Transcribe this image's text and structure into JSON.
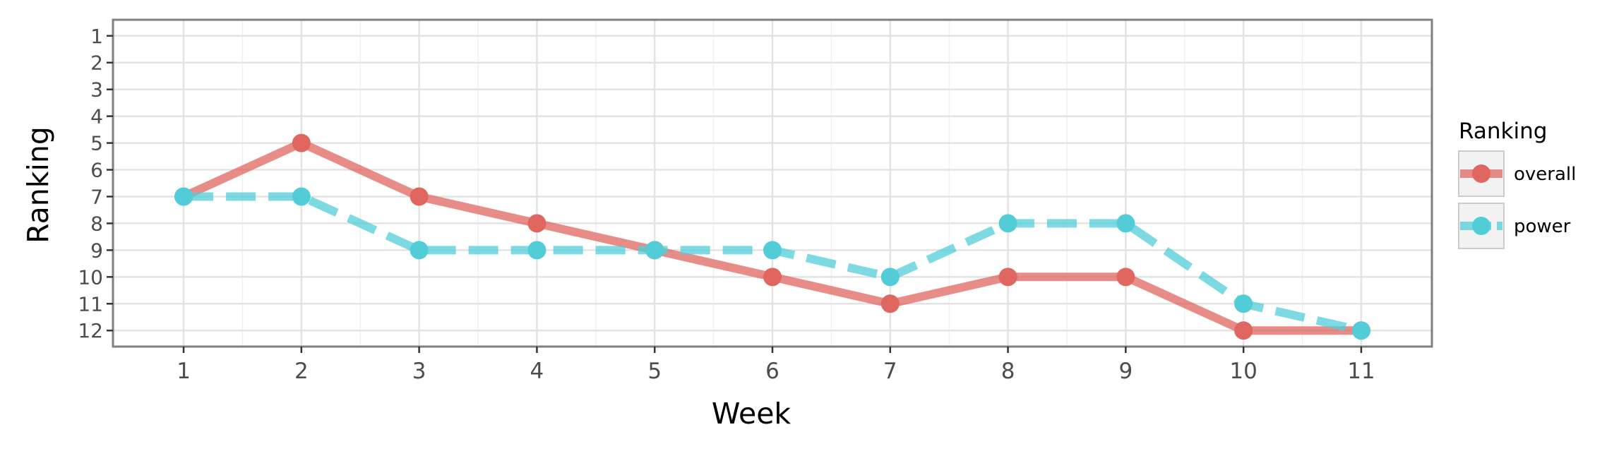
{
  "chart_data": {
    "type": "line",
    "xlabel": "Week",
    "ylabel": "Ranking",
    "x": [
      1,
      2,
      3,
      4,
      5,
      6,
      7,
      8,
      9,
      10,
      11
    ],
    "xlim": [
      0.4,
      11.6
    ],
    "ylim": [
      12.6,
      0.4
    ],
    "y_reversed": true,
    "yticks": [
      "1",
      "2",
      "3",
      "4",
      "5",
      "6",
      "7",
      "8",
      "9",
      "10",
      "11",
      "12"
    ],
    "xticks": [
      "1",
      "2",
      "3",
      "4",
      "5",
      "6",
      "7",
      "8",
      "9",
      "10",
      "11"
    ],
    "grid": true,
    "legend": {
      "title": "Ranking",
      "position": "right"
    },
    "series": [
      {
        "name": "overall",
        "color": "#E06660",
        "line_style": "solid",
        "values": [
          7,
          5,
          7,
          8,
          9,
          10,
          11,
          10,
          10,
          12,
          12
        ]
      },
      {
        "name": "power",
        "color": "#52CDD8",
        "line_style": "dashed",
        "values": [
          7,
          7,
          9,
          9,
          9,
          9,
          10,
          8,
          8,
          11,
          12
        ]
      }
    ]
  }
}
